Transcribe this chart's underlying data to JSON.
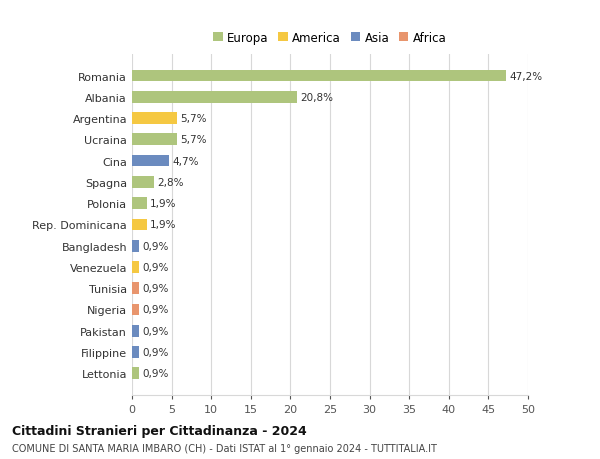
{
  "categories": [
    "Romania",
    "Albania",
    "Argentina",
    "Ucraina",
    "Cina",
    "Spagna",
    "Polonia",
    "Rep. Dominicana",
    "Bangladesh",
    "Venezuela",
    "Tunisia",
    "Nigeria",
    "Pakistan",
    "Filippine",
    "Lettonia"
  ],
  "values": [
    47.2,
    20.8,
    5.7,
    5.7,
    4.7,
    2.8,
    1.9,
    1.9,
    0.9,
    0.9,
    0.9,
    0.9,
    0.9,
    0.9,
    0.9
  ],
  "labels": [
    "47,2%",
    "20,8%",
    "5,7%",
    "5,7%",
    "4,7%",
    "2,8%",
    "1,9%",
    "1,9%",
    "0,9%",
    "0,9%",
    "0,9%",
    "0,9%",
    "0,9%",
    "0,9%",
    "0,9%"
  ],
  "colors": [
    "#aec57d",
    "#aec57d",
    "#f5c842",
    "#aec57d",
    "#6b8bbf",
    "#aec57d",
    "#aec57d",
    "#f5c842",
    "#6b8bbf",
    "#f5c842",
    "#e8956d",
    "#e8956d",
    "#6b8bbf",
    "#6b8bbf",
    "#aec57d"
  ],
  "legend_labels": [
    "Europa",
    "America",
    "Asia",
    "Africa"
  ],
  "legend_colors": [
    "#aec57d",
    "#f5c842",
    "#6b8bbf",
    "#e8956d"
  ],
  "title": "Cittadini Stranieri per Cittadinanza - 2024",
  "subtitle": "COMUNE DI SANTA MARIA IMBARO (CH) - Dati ISTAT al 1° gennaio 2024 - TUTTITALIA.IT",
  "xlim": [
    0,
    50
  ],
  "xticks": [
    0,
    5,
    10,
    15,
    20,
    25,
    30,
    35,
    40,
    45,
    50
  ],
  "bg_color": "#ffffff",
  "grid_color": "#d8d8d8"
}
